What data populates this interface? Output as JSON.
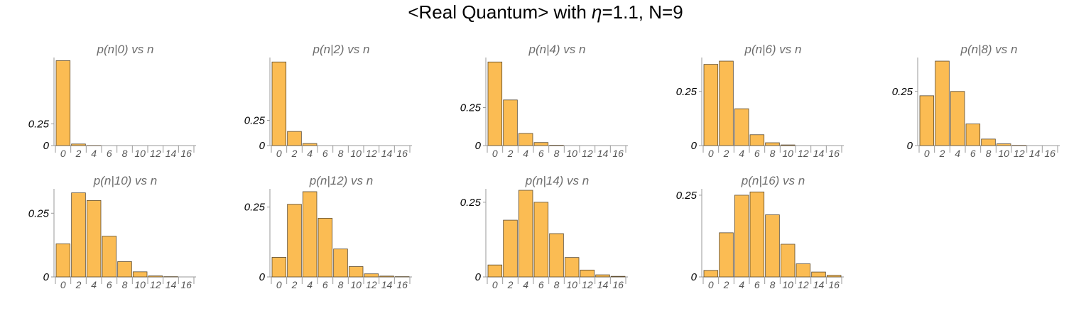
{
  "title": {
    "prefix": "<Real Quantum> with ",
    "symbol": "η",
    "suffix": "=1.1, N=9"
  },
  "chart_data": [
    {
      "type": "bar",
      "title": "p(n|0) vs n",
      "x": [
        0,
        2,
        4,
        6,
        8,
        10,
        12,
        14,
        16
      ],
      "values": [
        0.98,
        0.018,
        0.001,
        0,
        0,
        0,
        0,
        0,
        0
      ],
      "ylim": [
        0,
        1.0
      ],
      "yticks": [
        0,
        0.25
      ],
      "ytick_labels": [
        "0",
        "0.25"
      ],
      "xticks": [
        0,
        2,
        4,
        6,
        8,
        10,
        12,
        14,
        16
      ]
    },
    {
      "type": "bar",
      "title": "p(n|2) vs n",
      "x": [
        0,
        2,
        4,
        6,
        8,
        10,
        12,
        14,
        16
      ],
      "values": [
        0.83,
        0.14,
        0.02,
        0,
        0,
        0,
        0,
        0,
        0
      ],
      "ylim": [
        0,
        0.86
      ],
      "yticks": [
        0,
        0.25
      ],
      "ytick_labels": [
        "0",
        "0.25"
      ],
      "xticks": [
        0,
        2,
        4,
        6,
        8,
        10,
        12,
        14,
        16
      ]
    },
    {
      "type": "bar",
      "title": "p(n|4) vs n",
      "x": [
        0,
        2,
        4,
        6,
        8,
        10,
        12,
        14,
        16
      ],
      "values": [
        0.55,
        0.3,
        0.08,
        0.02,
        0.002,
        0,
        0,
        0,
        0
      ],
      "ylim": [
        0,
        0.57
      ],
      "yticks": [
        0,
        0.25
      ],
      "ytick_labels": [
        "0",
        "0.25"
      ],
      "xticks": [
        0,
        2,
        4,
        6,
        8,
        10,
        12,
        14,
        16
      ]
    },
    {
      "type": "bar",
      "title": "p(n|6) vs n",
      "x": [
        0,
        2,
        4,
        6,
        8,
        10,
        12,
        14,
        16
      ],
      "values": [
        0.375,
        0.39,
        0.17,
        0.05,
        0.013,
        0.003,
        0,
        0,
        0
      ],
      "ylim": [
        0,
        0.4
      ],
      "yticks": [
        0,
        0.25
      ],
      "ytick_labels": [
        "0",
        "0.25"
      ],
      "xticks": [
        0,
        2,
        4,
        6,
        8,
        10,
        12,
        14,
        16
      ]
    },
    {
      "type": "bar",
      "title": "p(n|8) vs n",
      "x": [
        0,
        2,
        4,
        6,
        8,
        10,
        12,
        14,
        16
      ],
      "values": [
        0.23,
        0.39,
        0.25,
        0.1,
        0.03,
        0.008,
        0.001,
        0,
        0
      ],
      "ylim": [
        0,
        0.4
      ],
      "yticks": [
        0,
        0.25
      ],
      "ytick_labels": [
        "0",
        "0.25"
      ],
      "xticks": [
        0,
        2,
        4,
        6,
        8,
        10,
        12,
        14,
        16
      ]
    },
    {
      "type": "bar",
      "title": "p(n|10) vs n",
      "x": [
        0,
        2,
        4,
        6,
        8,
        10,
        12,
        14,
        16
      ],
      "values": [
        0.13,
        0.33,
        0.3,
        0.16,
        0.06,
        0.02,
        0.004,
        0.001,
        0
      ],
      "ylim": [
        0,
        0.34
      ],
      "yticks": [
        0,
        0.25
      ],
      "ytick_labels": [
        "0",
        "0.25"
      ],
      "xticks": [
        0,
        2,
        4,
        6,
        8,
        10,
        12,
        14,
        16
      ]
    },
    {
      "type": "bar",
      "title": "p(n|12) vs n",
      "x": [
        0,
        2,
        4,
        6,
        8,
        10,
        12,
        14,
        16
      ],
      "values": [
        0.07,
        0.26,
        0.305,
        0.21,
        0.1,
        0.037,
        0.011,
        0.003,
        0.001
      ],
      "ylim": [
        0,
        0.31
      ],
      "yticks": [
        0,
        0.25
      ],
      "ytick_labels": [
        "0",
        "0.25"
      ],
      "xticks": [
        0,
        2,
        4,
        6,
        8,
        10,
        12,
        14,
        16
      ]
    },
    {
      "type": "bar",
      "title": "p(n|14) vs n",
      "x": [
        0,
        2,
        4,
        6,
        8,
        10,
        12,
        14,
        16
      ],
      "values": [
        0.04,
        0.19,
        0.29,
        0.25,
        0.145,
        0.065,
        0.023,
        0.007,
        0.002
      ],
      "ylim": [
        0,
        0.29
      ],
      "yticks": [
        0,
        0.25
      ],
      "ytick_labels": [
        "0",
        "0.25"
      ],
      "xticks": [
        0,
        2,
        4,
        6,
        8,
        10,
        12,
        14,
        16
      ]
    },
    {
      "type": "bar",
      "title": "p(n|16) vs n",
      "x": [
        0,
        2,
        4,
        6,
        8,
        10,
        12,
        14,
        16
      ],
      "values": [
        0.02,
        0.135,
        0.25,
        0.26,
        0.19,
        0.1,
        0.04,
        0.015,
        0.005
      ],
      "ylim": [
        0,
        0.265
      ],
      "yticks": [
        0,
        0.25
      ],
      "ytick_labels": [
        "0",
        "0.25"
      ],
      "xticks": [
        0,
        2,
        4,
        6,
        8,
        10,
        12,
        14,
        16
      ]
    }
  ]
}
